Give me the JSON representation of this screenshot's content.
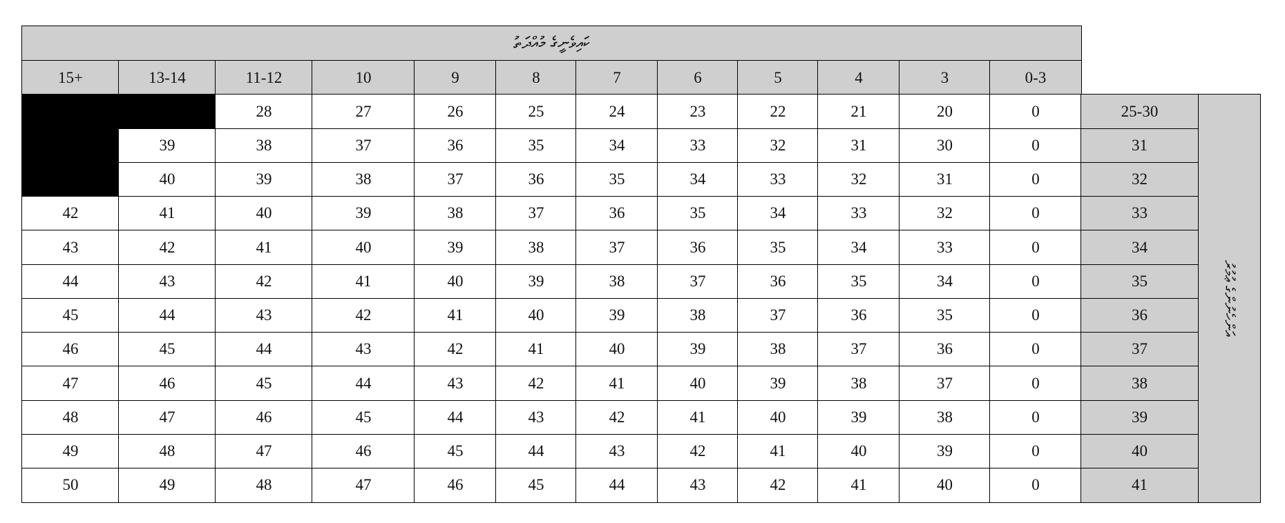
{
  "title": "ކައިވެނީގެ މުއްދަތު",
  "side_label": "އަންހެނުންގެ ޢުމުރު",
  "columns": [
    "15+",
    "13-14",
    "11-12",
    "10",
    "9",
    "8",
    "7",
    "6",
    "5",
    "4",
    "3",
    "0-3"
  ],
  "rows": [
    {
      "age": "25-30",
      "values": [
        null,
        null,
        "28",
        "27",
        "26",
        "25",
        "24",
        "23",
        "22",
        "21",
        "20",
        "0"
      ]
    },
    {
      "age": "31",
      "values": [
        null,
        "39",
        "38",
        "37",
        "36",
        "35",
        "34",
        "33",
        "32",
        "31",
        "30",
        "0"
      ]
    },
    {
      "age": "32",
      "values": [
        null,
        "40",
        "39",
        "38",
        "37",
        "36",
        "35",
        "34",
        "33",
        "32",
        "31",
        "0"
      ]
    },
    {
      "age": "33",
      "values": [
        "42",
        "41",
        "40",
        "39",
        "38",
        "37",
        "36",
        "35",
        "34",
        "33",
        "32",
        "0"
      ]
    },
    {
      "age": "34",
      "values": [
        "43",
        "42",
        "41",
        "40",
        "39",
        "38",
        "37",
        "36",
        "35",
        "34",
        "33",
        "0"
      ]
    },
    {
      "age": "35",
      "values": [
        "44",
        "43",
        "42",
        "41",
        "40",
        "39",
        "38",
        "37",
        "36",
        "35",
        "34",
        "0"
      ]
    },
    {
      "age": "36",
      "values": [
        "45",
        "44",
        "43",
        "42",
        "41",
        "40",
        "39",
        "38",
        "37",
        "36",
        "35",
        "0"
      ]
    },
    {
      "age": "37",
      "values": [
        "46",
        "45",
        "44",
        "43",
        "42",
        "41",
        "40",
        "39",
        "38",
        "37",
        "36",
        "0"
      ]
    },
    {
      "age": "38",
      "values": [
        "47",
        "46",
        "45",
        "44",
        "43",
        "42",
        "41",
        "40",
        "39",
        "38",
        "37",
        "0"
      ]
    },
    {
      "age": "39",
      "values": [
        "48",
        "47",
        "46",
        "45",
        "44",
        "43",
        "42",
        "41",
        "40",
        "39",
        "38",
        "0"
      ]
    },
    {
      "age": "40",
      "values": [
        "49",
        "48",
        "47",
        "46",
        "45",
        "44",
        "43",
        "42",
        "41",
        "40",
        "39",
        "0"
      ]
    },
    {
      "age": "41",
      "values": [
        "50",
        "49",
        "48",
        "47",
        "46",
        "45",
        "44",
        "43",
        "42",
        "41",
        "40",
        "0"
      ]
    }
  ],
  "colors": {
    "header_bg": "#d0cfd0",
    "blocked": "#000000"
  }
}
